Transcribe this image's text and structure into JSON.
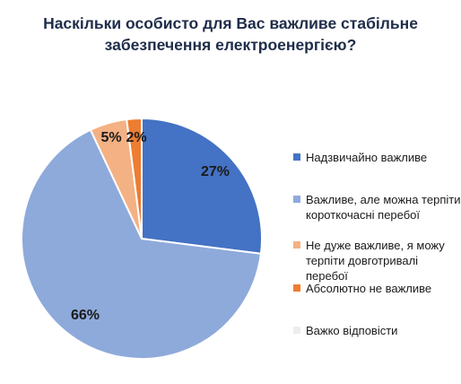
{
  "title": {
    "line1": "Наскільки особисто для Вас важливе стабільне",
    "line2": "забезпечення електроенергією?"
  },
  "chart_data": {
    "type": "pie",
    "title": "Наскільки особисто для Вас важливе стабільне забезпечення електроенергією?",
    "legend_position": "right",
    "series": [
      {
        "name": "Надзвичайно важливе",
        "value": 27,
        "label": "27%",
        "color": "#4472c4"
      },
      {
        "name": "Важливе, але можна терпіти короткочасні перебої",
        "value": 66,
        "label": "66%",
        "color": "#8eaadb"
      },
      {
        "name": "Не дуже важливе, я можу терпіти довготривалі перебої",
        "value": 5,
        "label": "5%",
        "color": "#f4b183"
      },
      {
        "name": "Абсолютно не важливе",
        "value": 2,
        "label": "2%",
        "color": "#ed7d31"
      },
      {
        "name": "Важко відповісти",
        "value": 0,
        "label": "",
        "color": "#ededed"
      }
    ]
  }
}
